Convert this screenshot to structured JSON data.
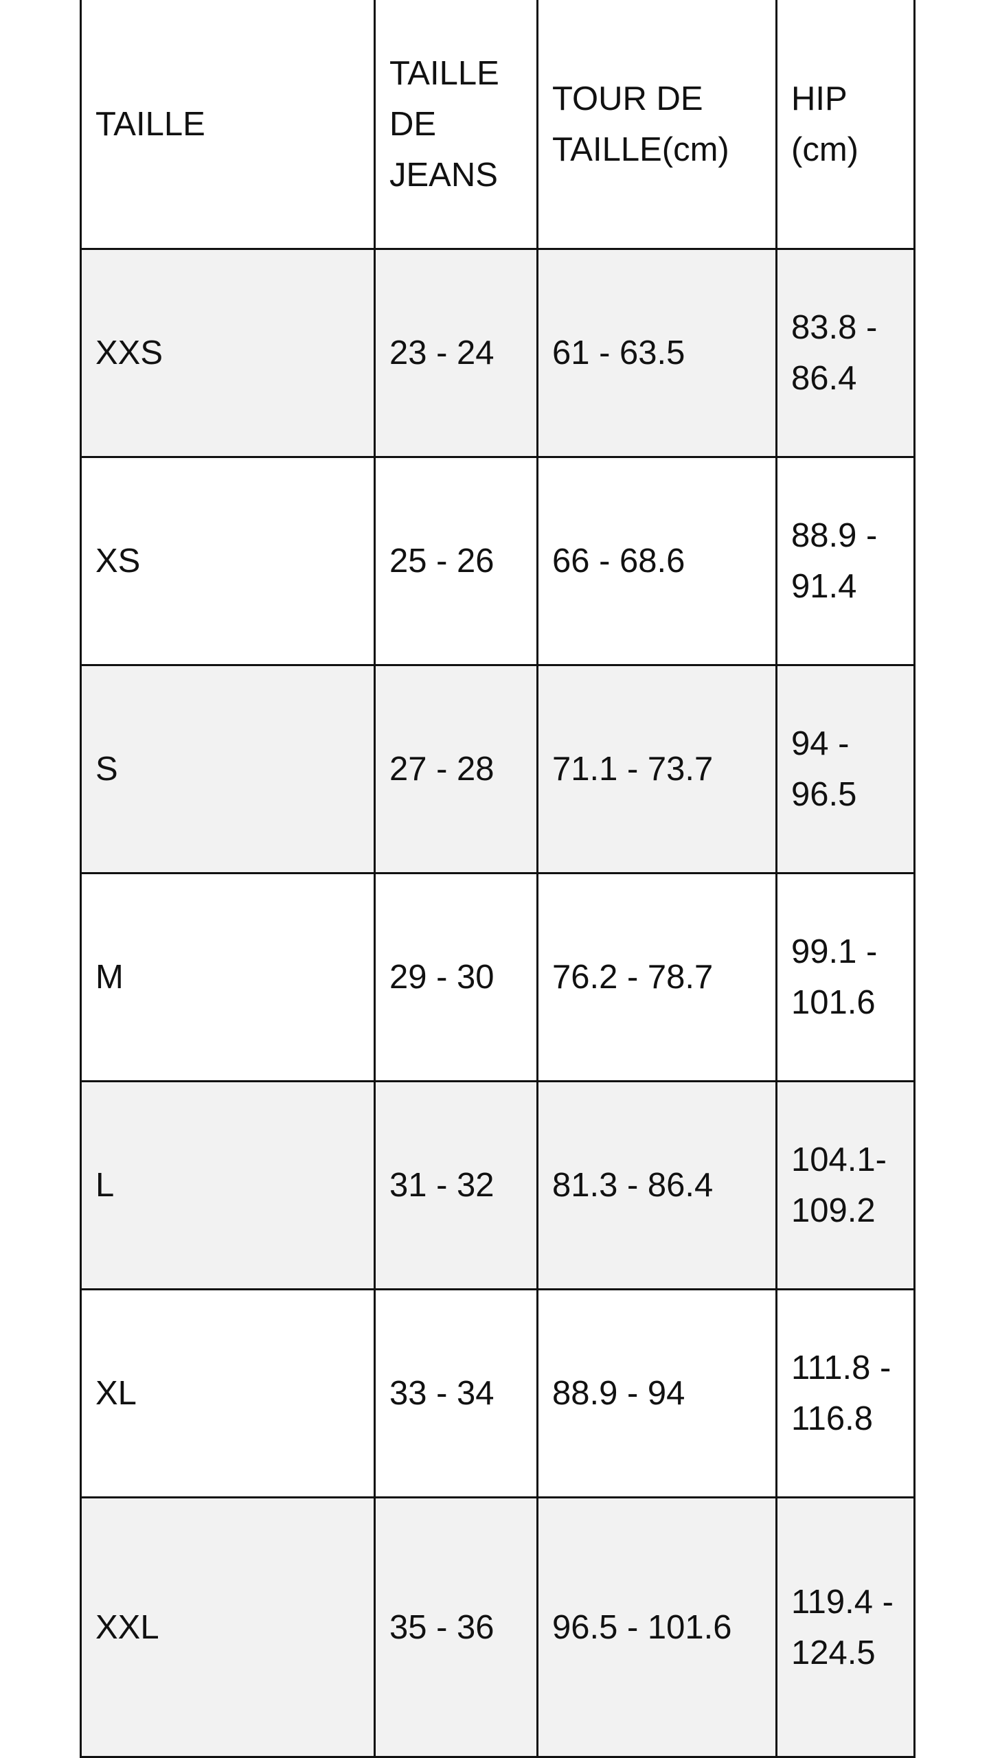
{
  "table": {
    "headers": [
      "TAILLE",
      "TAILLE DE JEANS",
      "TOUR DE TAILLE(cm)",
      "HIP (cm)"
    ],
    "rows": [
      [
        "XXS",
        "23 - 24",
        "61 - 63.5",
        "83.8 - 86.4"
      ],
      [
        "XS",
        "25 - 26",
        "66 - 68.6",
        "88.9 - 91.4"
      ],
      [
        "S",
        "27 - 28",
        "71.1 - 73.7",
        "94 - 96.5"
      ],
      [
        "M",
        "29 - 30",
        "76.2 - 78.7",
        "99.1 - 101.6"
      ],
      [
        "L",
        "31 - 32",
        "81.3 - 86.4",
        "104.1-109.2"
      ],
      [
        "XL",
        "33 - 34",
        "88.9 - 94",
        "111.8 - 116.8"
      ],
      [
        "XXL",
        "35 - 36",
        "96.5 - 101.6",
        "119.4 - 124.5"
      ]
    ],
    "alt_row_color": "#f2f2f2",
    "border_color": "#111111"
  }
}
